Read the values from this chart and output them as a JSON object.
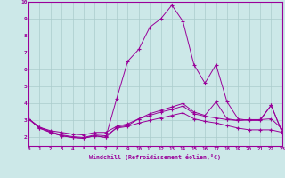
{
  "xlabel": "Windchill (Refroidissement éolien,°C)",
  "background_color": "#cce8e8",
  "line_color": "#990099",
  "grid_color": "#aacccc",
  "xlim": [
    0,
    23
  ],
  "ylim": [
    1.5,
    10
  ],
  "xticks": [
    0,
    1,
    2,
    3,
    4,
    5,
    6,
    7,
    8,
    9,
    10,
    11,
    12,
    13,
    14,
    15,
    16,
    17,
    18,
    19,
    20,
    21,
    22,
    23
  ],
  "yticks": [
    2,
    3,
    4,
    5,
    6,
    7,
    8,
    9,
    10
  ],
  "series": [
    {
      "x": [
        0,
        1,
        2,
        3,
        4,
        5,
        6,
        7,
        8,
        9,
        10,
        11,
        12,
        13,
        14,
        15,
        16,
        17,
        18,
        19,
        20,
        21,
        22,
        23
      ],
      "y": [
        3.1,
        2.55,
        2.3,
        2.1,
        2.0,
        1.95,
        2.1,
        2.0,
        4.3,
        6.5,
        7.2,
        8.5,
        9.0,
        9.8,
        8.85,
        6.3,
        5.2,
        6.3,
        4.1,
        3.1,
        3.0,
        3.0,
        3.9,
        2.3
      ]
    },
    {
      "x": [
        0,
        1,
        2,
        3,
        4,
        5,
        6,
        7,
        8,
        9,
        10,
        11,
        12,
        13,
        14,
        15,
        16,
        17,
        18,
        19,
        20,
        21,
        22,
        23
      ],
      "y": [
        3.1,
        2.55,
        2.3,
        2.1,
        2.0,
        1.95,
        2.1,
        2.0,
        2.6,
        2.7,
        3.1,
        3.4,
        3.6,
        3.8,
        4.0,
        3.5,
        3.3,
        4.1,
        3.1,
        3.0,
        3.05,
        3.05,
        3.9,
        2.3
      ]
    },
    {
      "x": [
        0,
        1,
        2,
        3,
        4,
        5,
        6,
        7,
        8,
        9,
        10,
        11,
        12,
        13,
        14,
        15,
        16,
        17,
        18,
        19,
        20,
        21,
        22,
        23
      ],
      "y": [
        3.1,
        2.6,
        2.4,
        2.3,
        2.2,
        2.15,
        2.3,
        2.3,
        2.65,
        2.8,
        3.1,
        3.3,
        3.5,
        3.65,
        3.85,
        3.4,
        3.25,
        3.15,
        3.05,
        3.0,
        3.05,
        3.05,
        3.1,
        2.5
      ]
    },
    {
      "x": [
        0,
        1,
        2,
        3,
        4,
        5,
        6,
        7,
        8,
        9,
        10,
        11,
        12,
        13,
        14,
        15,
        16,
        17,
        18,
        19,
        20,
        21,
        22,
        23
      ],
      "y": [
        3.1,
        2.6,
        2.35,
        2.15,
        2.05,
        2.0,
        2.15,
        2.1,
        2.55,
        2.65,
        2.85,
        3.0,
        3.15,
        3.3,
        3.45,
        3.1,
        2.95,
        2.85,
        2.7,
        2.55,
        2.45,
        2.45,
        2.45,
        2.3
      ]
    }
  ]
}
